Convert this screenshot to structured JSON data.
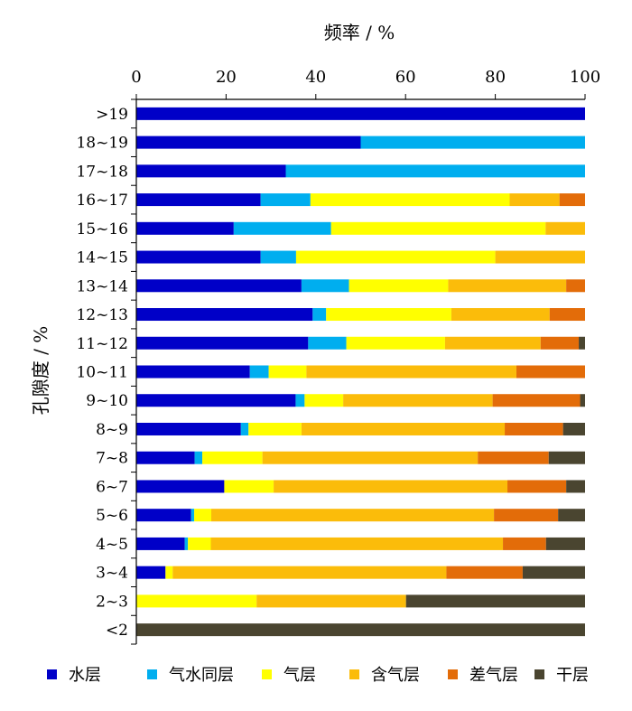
{
  "chart_data": {
    "type": "bar",
    "orientation": "horizontal",
    "stacked": true,
    "xlabel": "频率 / %",
    "ylabel": "孔隙度 / %",
    "xlim": [
      0,
      100
    ],
    "xticks": [
      0,
      20,
      40,
      60,
      80,
      100
    ],
    "x_axis_position": "top",
    "grid": false,
    "legend_position": "bottom",
    "categories": [
      ">19",
      "18~19",
      "17~18",
      "16~17",
      "15~16",
      "14~15",
      "13~14",
      "12~13",
      "11~12",
      "10~11",
      "9~10",
      "8~9",
      "7~8",
      "6~7",
      "5~6",
      "4~5",
      "3~4",
      "2~3",
      "<2"
    ],
    "series": [
      {
        "name": "水层",
        "color": "#0000c8",
        "values": [
          100,
          50,
          33.3,
          27.7,
          21.7,
          27.7,
          36.8,
          39.3,
          38.3,
          25.3,
          35.5,
          23.3,
          13.0,
          19.6,
          12.2,
          10.8,
          6.5,
          0,
          0
        ]
      },
      {
        "name": "气水同层",
        "color": "#00aeef",
        "values": [
          0,
          50,
          66.7,
          11.1,
          21.7,
          7.9,
          10.6,
          3.0,
          8.5,
          4.2,
          2.0,
          1.7,
          1.7,
          0,
          0.7,
          0.7,
          0,
          0,
          0
        ]
      },
      {
        "name": "气层",
        "color": "#ffff00",
        "values": [
          0,
          0,
          0,
          44.4,
          47.8,
          44.4,
          22.1,
          27.9,
          22.0,
          8.4,
          8.6,
          11.8,
          13.4,
          11.0,
          3.8,
          5.1,
          1.6,
          26.8,
          0
        ]
      },
      {
        "name": "含气层",
        "color": "#fbbc0a",
        "values": [
          0,
          0,
          0,
          11.1,
          8.8,
          20.0,
          26.3,
          21.9,
          21.3,
          46.8,
          33.3,
          45.3,
          48.0,
          52.1,
          63.0,
          65.1,
          61.0,
          33.3,
          0
        ]
      },
      {
        "name": "差气层",
        "color": "#e36c09",
        "values": [
          0,
          0,
          0,
          5.7,
          0,
          0,
          4.2,
          7.9,
          8.5,
          15.3,
          19.5,
          13.0,
          15.8,
          13.1,
          14.3,
          9.6,
          17.0,
          0,
          0
        ]
      },
      {
        "name": "干层",
        "color": "#4a4530",
        "values": [
          0,
          0,
          0,
          0,
          0,
          0,
          0,
          0,
          1.4,
          0,
          1.1,
          4.9,
          8.1,
          4.2,
          6.0,
          8.7,
          13.9,
          39.9,
          100
        ]
      }
    ]
  }
}
